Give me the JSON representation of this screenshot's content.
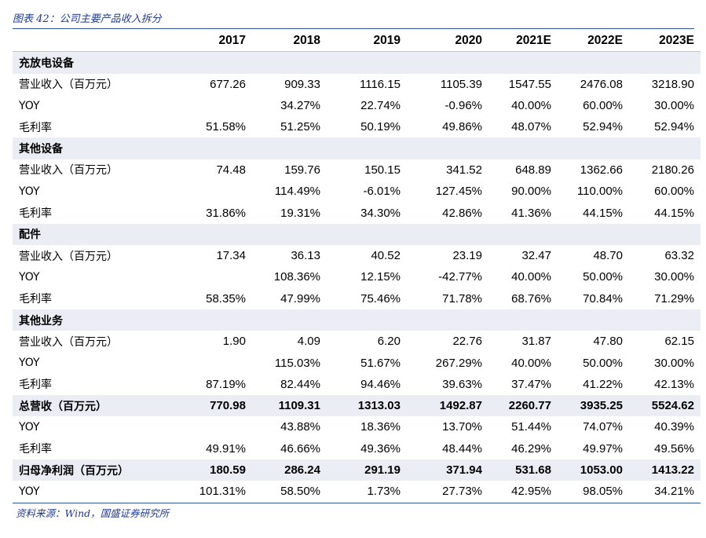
{
  "caption": "图表 42：公司主要产品收入拆分",
  "source": "资料来源：Wind，国盛证券研究所",
  "colors": {
    "accent": "#2f5597",
    "shade": "#eaeef4",
    "caption": "#1f3a93"
  },
  "years": [
    "2017",
    "2018",
    "2019",
    "2020",
    "2021E",
    "2022E",
    "2023E"
  ],
  "rows": [
    {
      "type": "section",
      "label": "充放电设备",
      "values": [
        "",
        "",
        "",
        "",
        "",
        "",
        ""
      ]
    },
    {
      "type": "row",
      "label": "营业收入（百万元）",
      "values": [
        "677.26",
        "909.33",
        "1116.15",
        "1105.39",
        "1547.55",
        "2476.08",
        "3218.90"
      ]
    },
    {
      "type": "row",
      "label": "YOY",
      "values": [
        "",
        "34.27%",
        "22.74%",
        "-0.96%",
        "40.00%",
        "60.00%",
        "30.00%"
      ]
    },
    {
      "type": "row",
      "label": "毛利率",
      "values": [
        "51.58%",
        "51.25%",
        "50.19%",
        "49.86%",
        "48.07%",
        "52.94%",
        "52.94%"
      ]
    },
    {
      "type": "section",
      "label": "其他设备",
      "values": [
        "",
        "",
        "",
        "",
        "",
        "",
        ""
      ]
    },
    {
      "type": "row",
      "label": "营业收入（百万元）",
      "values": [
        "74.48",
        "159.76",
        "150.15",
        "341.52",
        "648.89",
        "1362.66",
        "2180.26"
      ]
    },
    {
      "type": "row",
      "label": "YOY",
      "values": [
        "",
        "114.49%",
        "-6.01%",
        "127.45%",
        "90.00%",
        "110.00%",
        "60.00%"
      ]
    },
    {
      "type": "row",
      "label": "毛利率",
      "values": [
        "31.86%",
        "19.31%",
        "34.30%",
        "42.86%",
        "41.36%",
        "44.15%",
        "44.15%"
      ]
    },
    {
      "type": "section",
      "label": "配件",
      "values": [
        "",
        "",
        "",
        "",
        "",
        "",
        ""
      ]
    },
    {
      "type": "row",
      "label": "营业收入（百万元）",
      "values": [
        "17.34",
        "36.13",
        "40.52",
        "23.19",
        "32.47",
        "48.70",
        "63.32"
      ]
    },
    {
      "type": "row",
      "label": "YOY",
      "values": [
        "",
        "108.36%",
        "12.15%",
        "-42.77%",
        "40.00%",
        "50.00%",
        "30.00%"
      ]
    },
    {
      "type": "row",
      "label": "毛利率",
      "values": [
        "58.35%",
        "47.99%",
        "75.46%",
        "71.78%",
        "68.76%",
        "70.84%",
        "71.29%"
      ]
    },
    {
      "type": "section",
      "label": "其他业务",
      "values": [
        "",
        "",
        "",
        "",
        "",
        "",
        ""
      ]
    },
    {
      "type": "row",
      "label": "营业收入（百万元）",
      "values": [
        "1.90",
        "4.09",
        "6.20",
        "22.76",
        "31.87",
        "47.80",
        "62.15"
      ]
    },
    {
      "type": "row",
      "label": "YOY",
      "values": [
        "",
        "115.03%",
        "51.67%",
        "267.29%",
        "40.00%",
        "50.00%",
        "30.00%"
      ]
    },
    {
      "type": "row",
      "label": "毛利率",
      "values": [
        "87.19%",
        "82.44%",
        "94.46%",
        "39.63%",
        "37.47%",
        "41.22%",
        "42.13%"
      ]
    },
    {
      "type": "total",
      "label": "总营收（百万元）",
      "values": [
        "770.98",
        "1109.31",
        "1313.03",
        "1492.87",
        "2260.77",
        "3935.25",
        "5524.62"
      ]
    },
    {
      "type": "row",
      "label": "YOY",
      "values": [
        "",
        "43.88%",
        "18.36%",
        "13.70%",
        "51.44%",
        "74.07%",
        "40.39%"
      ]
    },
    {
      "type": "row",
      "label": "毛利率",
      "values": [
        "49.91%",
        "46.66%",
        "49.36%",
        "48.44%",
        "46.29%",
        "49.97%",
        "49.56%"
      ]
    },
    {
      "type": "total",
      "label": "归母净利润（百万元）",
      "values": [
        "180.59",
        "286.24",
        "291.19",
        "371.94",
        "531.68",
        "1053.00",
        "1413.22"
      ]
    },
    {
      "type": "row",
      "label": "YOY",
      "values": [
        "101.31%",
        "58.50%",
        "1.73%",
        "27.73%",
        "42.95%",
        "98.05%",
        "34.21%"
      ]
    }
  ]
}
